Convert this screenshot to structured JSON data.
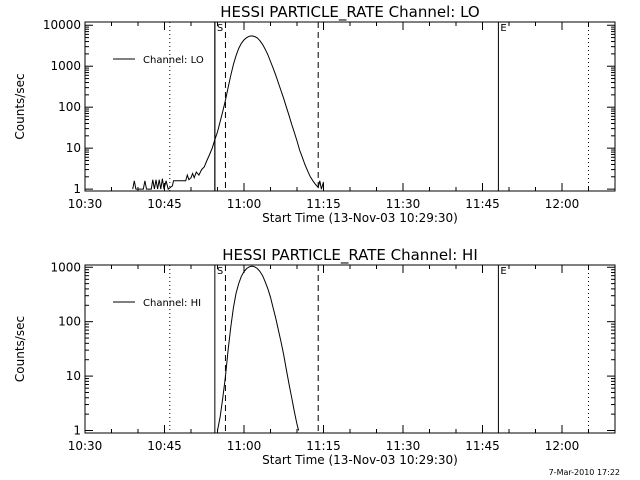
{
  "footer": {
    "timestamp": "7-Mar-2010 17:22"
  },
  "chart_data": [
    {
      "type": "line",
      "title": "HESSI PARTICLE_RATE Channel: LO",
      "xlabel": "Start Time (13-Nov-03 10:29:30)",
      "ylabel": "Counts/sec",
      "yscale": "log",
      "ylim": [
        0.9,
        12000
      ],
      "xlim": [
        "10:30",
        "12:10"
      ],
      "x_ticks": [
        "10:30",
        "10:45",
        "11:00",
        "11:15",
        "11:30",
        "11:45",
        "12:00"
      ],
      "y_ticks": [
        "1",
        "10",
        "100",
        "1000",
        "10000"
      ],
      "legend": {
        "position": "top-left",
        "entries": [
          "Channel: LO"
        ]
      },
      "markers": [
        {
          "type": "solid",
          "x": "10:54.5",
          "label": "S"
        },
        {
          "type": "solid",
          "x": "10:54.5",
          "label": ""
        },
        {
          "type": "dashed",
          "x": "10:56.5",
          "label": ""
        },
        {
          "type": "dashed",
          "x": "11:14",
          "label": ""
        },
        {
          "type": "solid",
          "x": "11:48",
          "label": "E"
        },
        {
          "type": "dotted",
          "x": "10:30",
          "label": ""
        },
        {
          "type": "dotted",
          "x": "10:46",
          "label": ""
        },
        {
          "type": "dotted",
          "x": "12:05",
          "label": ""
        }
      ],
      "series": [
        {
          "name": "Channel: LO",
          "points": [
            [
              "10:39",
              1
            ],
            [
              "10:39.3",
              1.6
            ],
            [
              "10:39.6",
              1
            ],
            [
              "10:41",
              1
            ],
            [
              "10:41.3",
              1.6
            ],
            [
              "10:41.6",
              1
            ],
            [
              "10:42.5",
              1
            ],
            [
              "10:42.8",
              1.7
            ],
            [
              "10:43.1",
              1
            ],
            [
              "10:43.4",
              1.7
            ],
            [
              "10:43.7",
              1
            ],
            [
              "10:44",
              1.7
            ],
            [
              "10:44.3",
              1
            ],
            [
              "10:44.6",
              1.8
            ],
            [
              "10:44.9",
              1
            ],
            [
              "10:45.3",
              1.6
            ],
            [
              "10:45.7",
              1
            ],
            [
              "10:46.5",
              1.2
            ],
            [
              "10:46.7",
              1.6
            ],
            [
              "10:47",
              1.6
            ],
            [
              "10:48",
              1.6
            ],
            [
              "10:49",
              1.6
            ],
            [
              "10:49.3",
              2.2
            ],
            [
              "10:49.6",
              1.7
            ],
            [
              "10:50",
              1.9
            ],
            [
              "10:50.3",
              2.4
            ],
            [
              "10:50.6",
              1.9
            ],
            [
              "10:51",
              2.6
            ],
            [
              "10:51.5",
              2.2
            ],
            [
              "10:52",
              3
            ],
            [
              "10:52.5",
              3.5
            ],
            [
              "10:53",
              5
            ],
            [
              "10:53.5",
              7
            ],
            [
              "10:54",
              10
            ],
            [
              "10:54.5",
              16
            ],
            [
              "10:55",
              25
            ],
            [
              "10:55.5",
              45
            ],
            [
              "10:56",
              80
            ],
            [
              "10:56.5",
              150
            ],
            [
              "10:57",
              300
            ],
            [
              "10:57.5",
              600
            ],
            [
              "10:58",
              1100
            ],
            [
              "10:58.5",
              1800
            ],
            [
              "10:59",
              2700
            ],
            [
              "10:59.5",
              3600
            ],
            [
              "11:00",
              4400
            ],
            [
              "11:00.5",
              5000
            ],
            [
              "11:01",
              5400
            ],
            [
              "11:01.5",
              5500
            ],
            [
              "11:02",
              5300
            ],
            [
              "11:02.5",
              4900
            ],
            [
              "11:03",
              4200
            ],
            [
              "11:03.5",
              3400
            ],
            [
              "11:04",
              2600
            ],
            [
              "11:04.5",
              1900
            ],
            [
              "11:05",
              1300
            ],
            [
              "11:05.5",
              900
            ],
            [
              "11:06",
              600
            ],
            [
              "11:06.5",
              390
            ],
            [
              "11:07",
              250
            ],
            [
              "11:07.5",
              160
            ],
            [
              "11:08",
              100
            ],
            [
              "11:08.5",
              62
            ],
            [
              "11:09",
              38
            ],
            [
              "11:09.5",
              24
            ],
            [
              "11:10",
              15
            ],
            [
              "11:10.5",
              9
            ],
            [
              "11:11",
              6
            ],
            [
              "11:11.5",
              4
            ],
            [
              "11:12",
              2.8
            ],
            [
              "11:12.5",
              2
            ],
            [
              "11:13",
              1.6
            ],
            [
              "11:13.5",
              1.3
            ],
            [
              "11:14",
              1.1
            ],
            [
              "11:14.3",
              1.6
            ],
            [
              "11:14.6",
              1
            ],
            [
              "11:15",
              1.5
            ]
          ]
        }
      ]
    },
    {
      "type": "line",
      "title": "HESSI PARTICLE_RATE Channel: HI",
      "xlabel": "Start Time (13-Nov-03 10:29:30)",
      "ylabel": "Counts/sec",
      "yscale": "log",
      "ylim": [
        0.9,
        1100
      ],
      "xlim": [
        "10:30",
        "12:10"
      ],
      "x_ticks": [
        "10:30",
        "10:45",
        "11:00",
        "11:15",
        "11:30",
        "11:45",
        "12:00"
      ],
      "y_ticks": [
        "1",
        "10",
        "100",
        "1000"
      ],
      "legend": {
        "position": "top-left",
        "entries": [
          "Channel: HI"
        ]
      },
      "markers": [
        {
          "type": "solid",
          "x": "10:54.5",
          "label": "S"
        },
        {
          "type": "dashed",
          "x": "10:56.5",
          "label": ""
        },
        {
          "type": "dashed",
          "x": "11:14",
          "label": ""
        },
        {
          "type": "solid",
          "x": "11:48",
          "label": "E"
        },
        {
          "type": "dotted",
          "x": "10:30",
          "label": ""
        },
        {
          "type": "dotted",
          "x": "10:46",
          "label": ""
        },
        {
          "type": "dotted",
          "x": "12:05",
          "label": ""
        }
      ],
      "series": [
        {
          "name": "Channel: HI",
          "points": [
            [
              "10:55",
              1
            ],
            [
              "10:55.5",
              1.8
            ],
            [
              "10:56",
              4
            ],
            [
              "10:56.5",
              10
            ],
            [
              "10:57",
              30
            ],
            [
              "10:57.5",
              80
            ],
            [
              "10:58",
              180
            ],
            [
              "10:58.5",
              330
            ],
            [
              "10:59",
              500
            ],
            [
              "10:59.5",
              680
            ],
            [
              "11:00",
              830
            ],
            [
              "11:00.5",
              950
            ],
            [
              "11:01",
              1020
            ],
            [
              "11:01.5",
              1050
            ],
            [
              "11:02",
              1020
            ],
            [
              "11:02.5",
              950
            ],
            [
              "11:03",
              840
            ],
            [
              "11:03.5",
              700
            ],
            [
              "11:04",
              540
            ],
            [
              "11:04.5",
              400
            ],
            [
              "11:05",
              280
            ],
            [
              "11:05.5",
              180
            ],
            [
              "11:06",
              115
            ],
            [
              "11:06.5",
              70
            ],
            [
              "11:07",
              42
            ],
            [
              "11:07.5",
              24
            ],
            [
              "11:08",
              13
            ],
            [
              "11:08.5",
              7
            ],
            [
              "11:09",
              4
            ],
            [
              "11:09.5",
              2.2
            ],
            [
              "11:10",
              1.3
            ],
            [
              "11:10.3",
              1
            ]
          ]
        }
      ]
    }
  ]
}
